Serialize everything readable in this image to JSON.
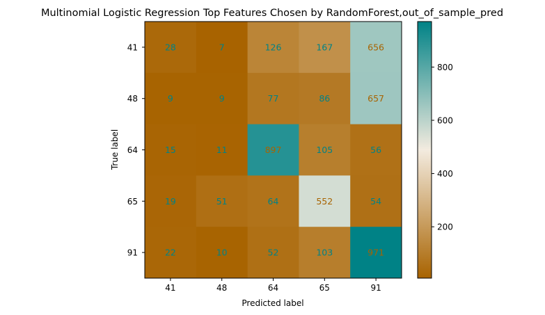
{
  "chart_data": {
    "type": "heatmap",
    "title": "Multinomial Logistic Regression Top Features Chosen by RandomForest,out_of_sample_pred",
    "xlabel": "Predicted label",
    "ylabel": "True label",
    "x_categories": [
      "41",
      "48",
      "64",
      "65",
      "91"
    ],
    "y_categories": [
      "41",
      "48",
      "64",
      "65",
      "91"
    ],
    "matrix": [
      [
        28,
        7,
        126,
        167,
        656
      ],
      [
        9,
        9,
        77,
        86,
        657
      ],
      [
        15,
        11,
        897,
        105,
        56
      ],
      [
        19,
        51,
        64,
        552,
        54
      ],
      [
        22,
        10,
        52,
        103,
        971
      ]
    ],
    "colorbar": {
      "min": 7,
      "max": 971,
      "ticks": [
        200,
        400,
        600,
        800
      ],
      "colormap": "BrBG",
      "colors": [
        "#a86300",
        "#f3ebdf",
        "#008286"
      ]
    },
    "text_colors": {
      "low": "#008286",
      "high": "#a86300",
      "threshold": 489
    }
  }
}
